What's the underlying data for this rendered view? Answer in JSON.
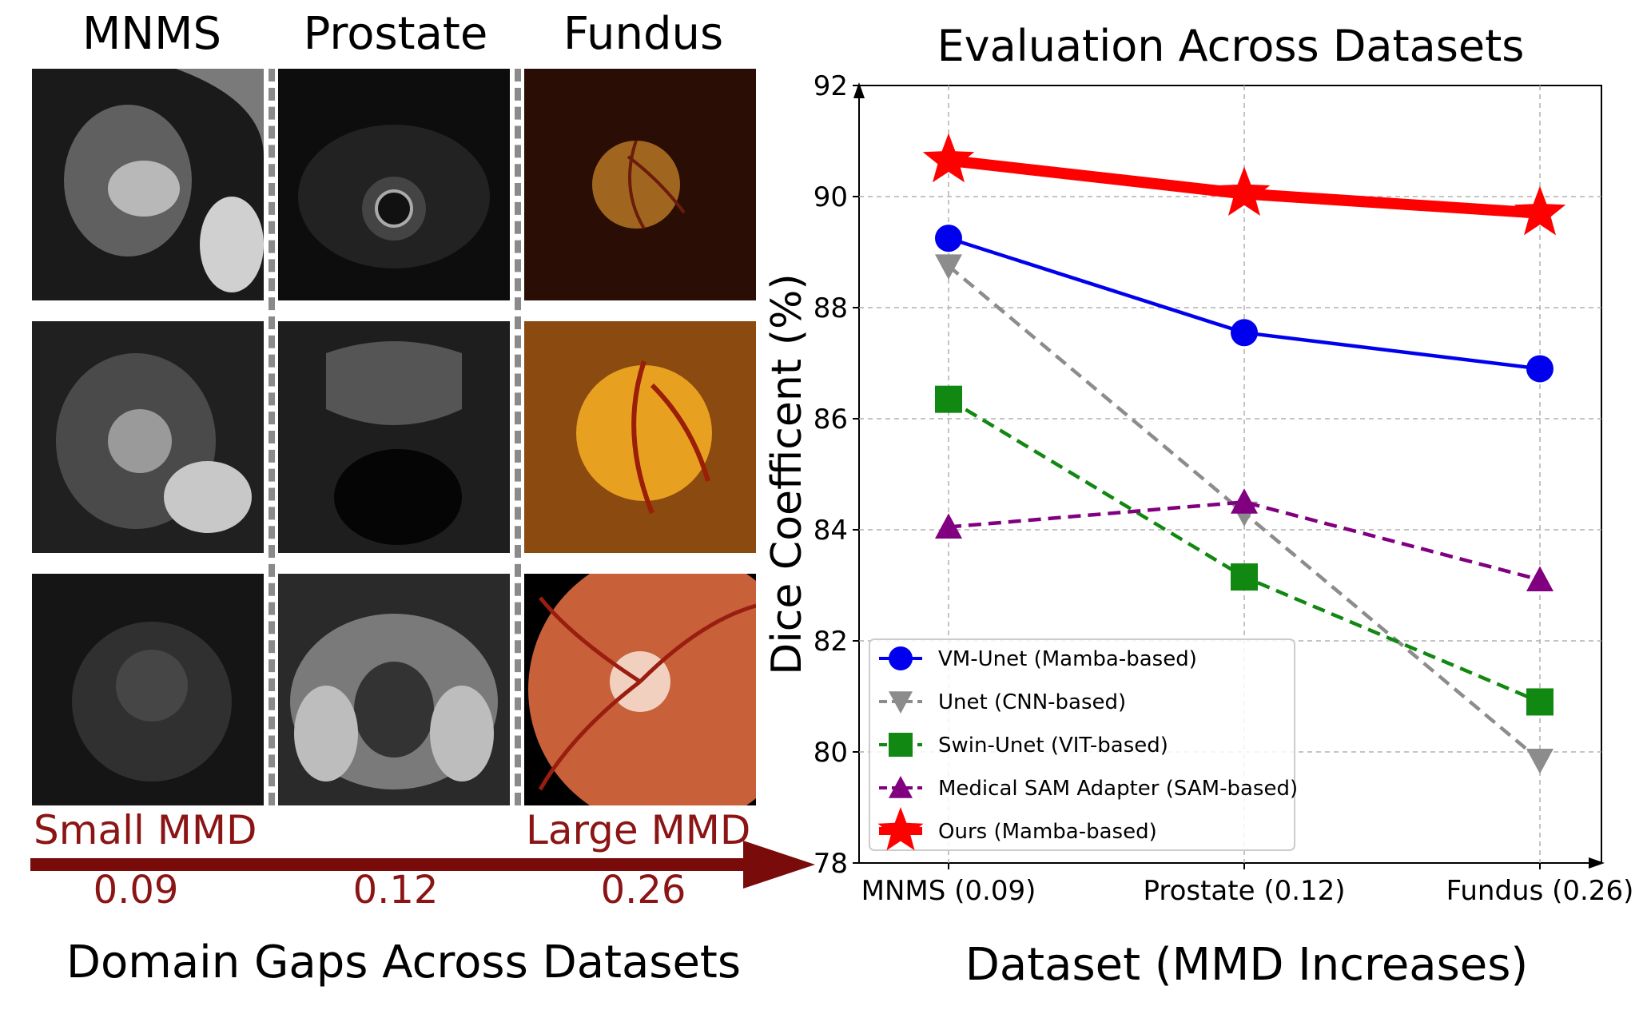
{
  "panel_left": {
    "column_titles": [
      "MNMS",
      "Prostate",
      "Fundus"
    ],
    "small_label": "Small MMD",
    "large_label": "Large MMD",
    "mmd_values": [
      "0.09",
      "0.12",
      "0.26"
    ],
    "caption": "Domain Gaps Across Datasets",
    "accent_color": "#7a0b0b",
    "label_color": "#8b1414"
  },
  "chart_data": {
    "type": "line",
    "title": "Evaluation Across Datasets",
    "xlabel": "Dataset (MMD Increases)",
    "ylabel": "Dice Coefficent (%)",
    "categories": [
      "MNMS (0.09)",
      "Prostate (0.12)",
      "Fundus (0.26)"
    ],
    "ylim": [
      78,
      92
    ],
    "yticks": [
      "78",
      "80",
      "82",
      "84",
      "86",
      "88",
      "90",
      "92"
    ],
    "grid": true,
    "legend_position": "lower-left",
    "series": [
      {
        "name": "VM-Unet (Mamba-based)",
        "values": [
          89.25,
          87.55,
          86.9
        ],
        "color": "#0000ee",
        "marker": "circle",
        "dash": "solid"
      },
      {
        "name": "Unet (CNN-based)",
        "values": [
          88.75,
          84.3,
          79.85
        ],
        "color": "#8c8c8c",
        "marker": "triangle-down",
        "dash": "dashed"
      },
      {
        "name": "Swin-Unet (VIT-based)",
        "values": [
          86.35,
          83.15,
          80.9
        ],
        "color": "#118811",
        "marker": "square",
        "dash": "dashed"
      },
      {
        "name": "Medical SAM Adapter (SAM-based)",
        "values": [
          84.05,
          84.5,
          83.1
        ],
        "color": "#800080",
        "marker": "triangle-up",
        "dash": "dashed"
      },
      {
        "name": "Ours (Mamba-based)",
        "values": [
          90.65,
          90.05,
          89.7
        ],
        "color": "#ff0000",
        "marker": "star",
        "dash": "solid"
      }
    ]
  }
}
